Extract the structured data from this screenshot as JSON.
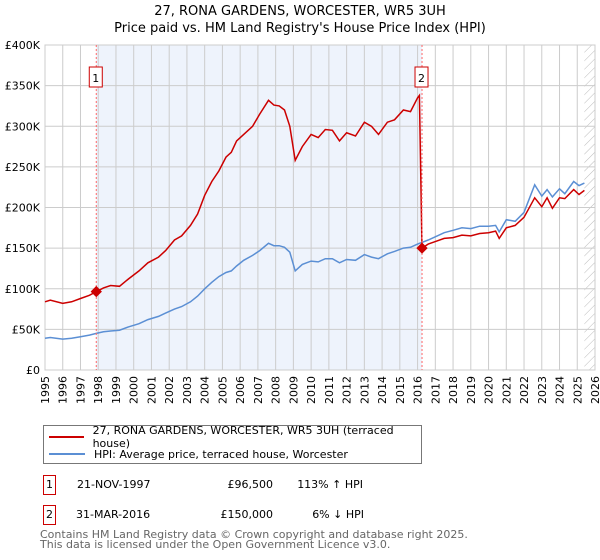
{
  "title_line1": "27, RONA GARDENS, WORCESTER, WR5 3UH",
  "title_line2": "Price paid vs. HM Land Registry's House Price Index (HPI)",
  "chart_data": {
    "type": "line",
    "title": "27, RONA GARDENS, WORCESTER, WR5 3UH — Price paid vs. HM Land Registry's House Price Index (HPI)",
    "xlabel": "",
    "ylabel": "",
    "xlim": [
      1995,
      2026
    ],
    "ylim": [
      0,
      400000
    ],
    "grid": true,
    "y_ticks": [
      0,
      50000,
      100000,
      150000,
      200000,
      250000,
      300000,
      350000,
      400000
    ],
    "y_tick_labels": [
      "£0",
      "£50K",
      "£100K",
      "£150K",
      "£200K",
      "£250K",
      "£300K",
      "£350K",
      "£400K"
    ],
    "x_ticks": [
      1995,
      1996,
      1997,
      1998,
      1999,
      2000,
      2001,
      2002,
      2003,
      2004,
      2005,
      2006,
      2007,
      2008,
      2009,
      2010,
      2011,
      2012,
      2013,
      2014,
      2015,
      2016,
      2017,
      2018,
      2019,
      2020,
      2021,
      2022,
      2023,
      2024,
      2025,
      2026
    ],
    "shaded_range": [
      1997.89,
      2016.25
    ],
    "future_hatch_from": 2025.4,
    "colors": {
      "property": "#cc0000",
      "hpi": "#5b8fd4",
      "shade": "#eef3fc",
      "marker_line": "#ff6666"
    },
    "series": [
      {
        "name": "27, RONA GARDENS, WORCESTER, WR5 3UH (terraced house)",
        "x": [
          1995,
          1995.3,
          1996,
          1996.5,
          1997,
          1997.5,
          1997.89,
          1998.3,
          1998.7,
          1999.2,
          1999.7,
          2000.3,
          2000.8,
          2001.4,
          2001.8,
          2002.3,
          2002.7,
          2003.2,
          2003.6,
          2004.0,
          2004.4,
          2004.8,
          2005.2,
          2005.5,
          2005.8,
          2006.2,
          2006.7,
          2007.1,
          2007.6,
          2007.9,
          2008.2,
          2008.5,
          2008.8,
          2009.1,
          2009.5,
          2010.0,
          2010.4,
          2010.8,
          2011.2,
          2011.6,
          2012.0,
          2012.5,
          2013.0,
          2013.4,
          2013.8,
          2014.3,
          2014.7,
          2015.2,
          2015.6,
          2016.0,
          2016.1,
          2016.25,
          2016.6,
          2017.0,
          2017.5,
          2018.0,
          2018.5,
          2019.0,
          2019.5,
          2020.0,
          2020.4,
          2020.6,
          2021.0,
          2021.5,
          2022.0,
          2022.6,
          2023.0,
          2023.3,
          2023.6,
          2024.0,
          2024.3,
          2024.8,
          2025.1,
          2025.4
        ],
        "y": [
          84000,
          86000,
          82000,
          84000,
          88000,
          92000,
          96500,
          101000,
          104000,
          103000,
          112000,
          122000,
          132000,
          139000,
          147000,
          160000,
          165000,
          178000,
          192000,
          215000,
          232000,
          245000,
          262000,
          268000,
          282000,
          290000,
          300000,
          315000,
          332000,
          326000,
          325000,
          320000,
          300000,
          258000,
          275000,
          290000,
          286000,
          296000,
          295000,
          282000,
          292000,
          288000,
          305000,
          300000,
          290000,
          305000,
          308000,
          320000,
          318000,
          335000,
          338000,
          150000,
          155000,
          158000,
          162000,
          163000,
          166000,
          165000,
          168000,
          169000,
          171000,
          162000,
          175000,
          178000,
          188000,
          212000,
          201000,
          212000,
          199000,
          212000,
          211000,
          222000,
          216000,
          221000
        ]
      },
      {
        "name": "HPI: Average price, terraced house, Worcester",
        "x": [
          1995,
          1995.3,
          1996,
          1996.5,
          1997,
          1997.5,
          1997.89,
          1998.3,
          1998.7,
          1999.2,
          1999.7,
          2000.3,
          2000.8,
          2001.4,
          2001.8,
          2002.3,
          2002.7,
          2003.2,
          2003.6,
          2004.0,
          2004.4,
          2004.8,
          2005.2,
          2005.5,
          2005.8,
          2006.2,
          2006.7,
          2007.1,
          2007.6,
          2007.9,
          2008.2,
          2008.5,
          2008.8,
          2009.1,
          2009.5,
          2010.0,
          2010.4,
          2010.8,
          2011.2,
          2011.6,
          2012.0,
          2012.5,
          2013.0,
          2013.4,
          2013.8,
          2014.3,
          2014.7,
          2015.2,
          2015.6,
          2016.0,
          2016.1,
          2016.25,
          2016.6,
          2017.0,
          2017.5,
          2018.0,
          2018.5,
          2019.0,
          2019.5,
          2020.0,
          2020.4,
          2020.6,
          2021.0,
          2021.5,
          2022.0,
          2022.6,
          2023.0,
          2023.3,
          2023.6,
          2024.0,
          2024.3,
          2024.8,
          2025.1,
          2025.4
        ],
        "y": [
          39000,
          40000,
          38000,
          39000,
          41000,
          43000,
          45000,
          47000,
          48000,
          49000,
          53000,
          57000,
          62000,
          66000,
          70000,
          75000,
          78000,
          84000,
          91000,
          100000,
          108000,
          115000,
          120000,
          122000,
          128000,
          135000,
          141000,
          147000,
          156000,
          153000,
          153000,
          151000,
          145000,
          122000,
          130000,
          134000,
          133000,
          137000,
          137000,
          132000,
          136000,
          135000,
          142000,
          139000,
          137000,
          143000,
          146000,
          150000,
          151000,
          155000,
          156000,
          157000,
          160000,
          164000,
          169000,
          172000,
          175000,
          174000,
          177000,
          177000,
          178000,
          170000,
          185000,
          183000,
          194000,
          228000,
          214000,
          222000,
          213000,
          223000,
          217000,
          232000,
          227000,
          230000
        ]
      }
    ],
    "sales": [
      {
        "label": "1",
        "x": 1997.89,
        "y": 96500
      },
      {
        "label": "2",
        "x": 2016.25,
        "y": 150000
      }
    ]
  },
  "legend": {
    "property": "27, RONA GARDENS, WORCESTER, WR5 3UH (terraced house)",
    "hpi": "HPI: Average price, terraced house, Worcester"
  },
  "transactions": [
    {
      "num": "1",
      "date": "21-NOV-1997",
      "price": "£96,500",
      "hpi": "113% ↑ HPI"
    },
    {
      "num": "2",
      "date": "31-MAR-2016",
      "price": "£150,000",
      "hpi": "6% ↓ HPI"
    }
  ],
  "footer_line1": "Contains HM Land Registry data © Crown copyright and database right 2025.",
  "footer_line2": "This data is licensed under the Open Government Licence v3.0."
}
